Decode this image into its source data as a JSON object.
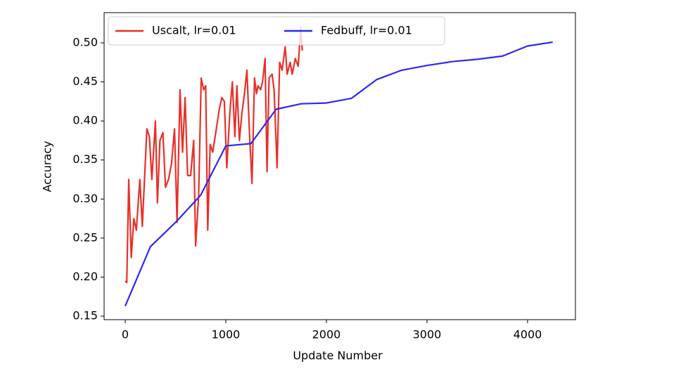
{
  "chart_data": {
    "type": "line",
    "xlabel": "Update Number",
    "ylabel": "Accuracy",
    "xlim": [
      -210,
      4476
    ],
    "ylim": [
      0.1455,
      0.5387
    ],
    "xticks": [
      0,
      1000,
      2000,
      3000,
      4000
    ],
    "yticks": [
      0.15,
      {
        "value": 0.2,
        "label": "0.20"
      },
      0.25,
      {
        "value": 0.3,
        "label": "0.30"
      },
      0.35,
      {
        "value": 0.4,
        "label": "0.40"
      },
      0.45,
      {
        "value": 0.5,
        "label": "0.50"
      }
    ],
    "legend": "upper left",
    "series": [
      {
        "name": "Uscalt, lr=0.01",
        "color": "#e8302a",
        "x": [
          0,
          15,
          35,
          60,
          85,
          110,
          145,
          170,
          215,
          240,
          265,
          300,
          320,
          345,
          375,
          400,
          430,
          460,
          490,
          515,
          545,
          570,
          595,
          620,
          650,
          680,
          700,
          730,
          755,
          780,
          800,
          820,
          845,
          870,
          900,
          935,
          960,
          985,
          1010,
          1040,
          1065,
          1090,
          1110,
          1135,
          1160,
          1185,
          1210,
          1235,
          1260,
          1285,
          1305,
          1320,
          1345,
          1365,
          1390,
          1410,
          1430,
          1460,
          1480,
          1510,
          1535,
          1560,
          1590,
          1610,
          1640,
          1660,
          1690,
          1720,
          1745,
          1760
        ],
        "values": [
          0.195,
          0.193,
          0.325,
          0.225,
          0.275,
          0.26,
          0.325,
          0.265,
          0.39,
          0.38,
          0.325,
          0.4,
          0.295,
          0.375,
          0.385,
          0.315,
          0.325,
          0.345,
          0.39,
          0.27,
          0.44,
          0.36,
          0.43,
          0.33,
          0.33,
          0.375,
          0.24,
          0.305,
          0.455,
          0.44,
          0.445,
          0.26,
          0.37,
          0.36,
          0.385,
          0.415,
          0.43,
          0.425,
          0.34,
          0.41,
          0.45,
          0.38,
          0.445,
          0.375,
          0.41,
          0.435,
          0.465,
          0.385,
          0.32,
          0.455,
          0.435,
          0.445,
          0.44,
          0.45,
          0.48,
          0.335,
          0.455,
          0.46,
          0.44,
          0.34,
          0.475,
          0.465,
          0.495,
          0.46,
          0.475,
          0.46,
          0.48,
          0.47,
          0.52,
          0.49
        ]
      },
      {
        "name": "Fedbuff, lr=0.01",
        "color": "#2a2af0",
        "x": [
          0,
          250,
          500,
          750,
          1000,
          1250,
          1500,
          1750,
          2000,
          2250,
          2500,
          2750,
          3000,
          3250,
          3500,
          3750,
          4000,
          4250
        ],
        "values": [
          0.163,
          0.239,
          0.27,
          0.305,
          0.368,
          0.371,
          0.415,
          0.422,
          0.423,
          0.429,
          0.453,
          0.465,
          0.471,
          0.476,
          0.479,
          0.483,
          0.496,
          0.501
        ]
      }
    ]
  }
}
